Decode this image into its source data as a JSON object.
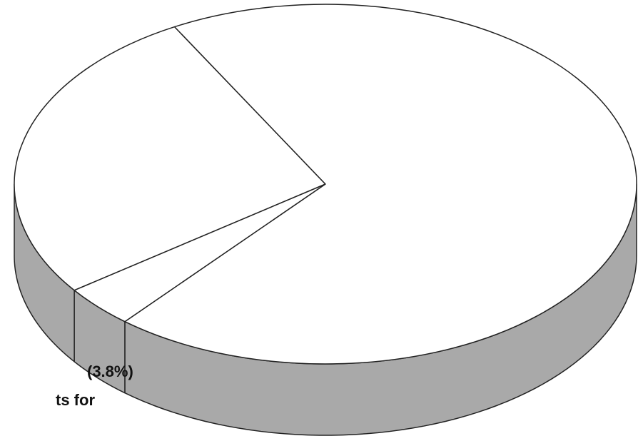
{
  "chart_data": {
    "type": "pie",
    "values": [
      27,
      3.8,
      69.2
    ],
    "value_labels": [
      null,
      "(3.8%)",
      null
    ],
    "annotation": "ts for",
    "color": "#ffffff",
    "side_color": "#a9a9a9"
  }
}
